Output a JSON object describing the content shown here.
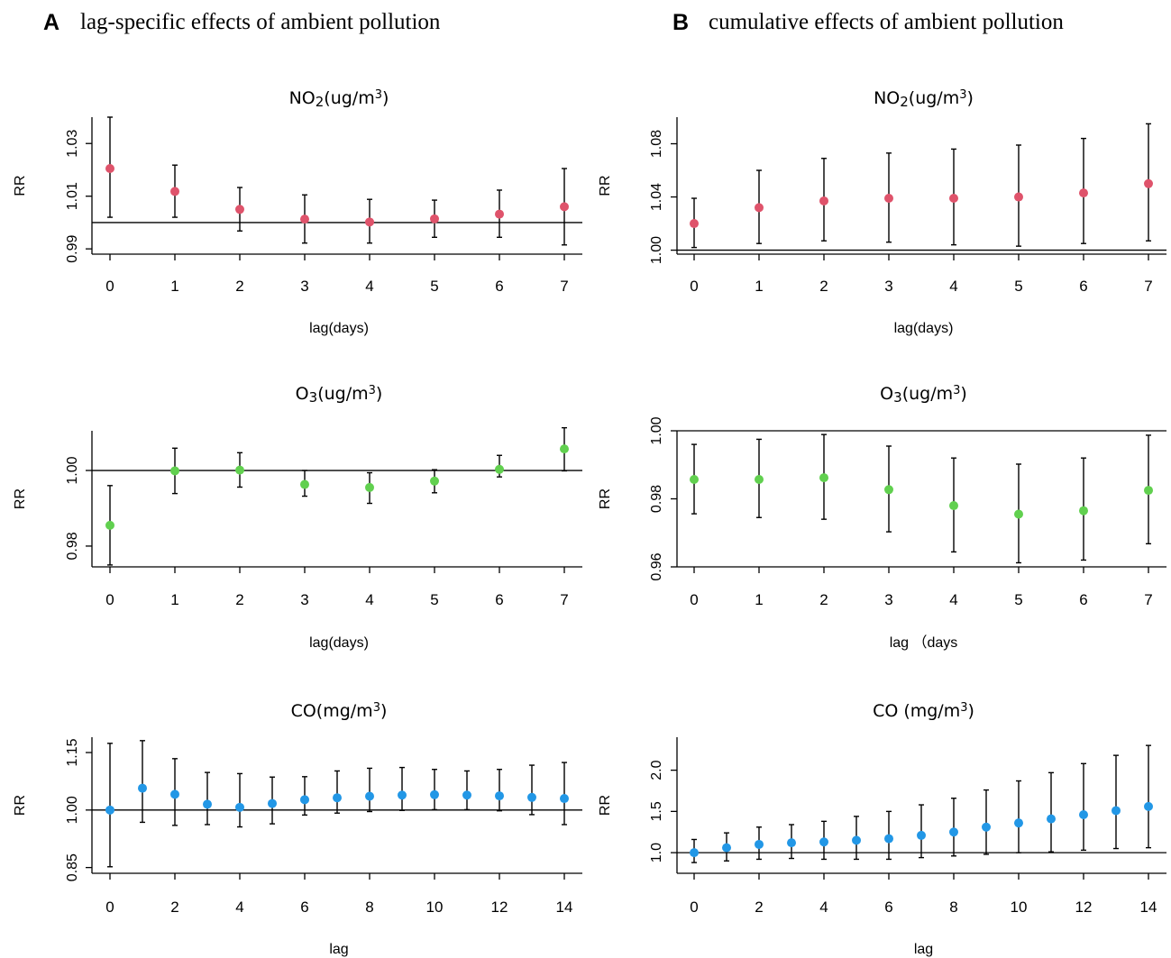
{
  "panels": [
    {
      "letter": "A",
      "title": "lag-specific effects of ambient pollution"
    },
    {
      "letter": "B",
      "title": "cumulative effects of ambient pollution"
    }
  ],
  "colors": {
    "no2": "#DF536B",
    "o3": "#61D04F",
    "co": "#2297E6",
    "axis": "#000000"
  },
  "chart_data": [
    {
      "id": "A-no2",
      "type": "scatter",
      "panel": "A",
      "title": {
        "base": "NO",
        "sub": "2",
        "mid": "(ug/m",
        "sup": "3",
        "end": ")"
      },
      "xlabel": "lag(days)",
      "ylabel": "RR",
      "color_key": "no2",
      "xlim": [
        0,
        7
      ],
      "ylim": [
        0.988,
        1.04
      ],
      "xticks": [
        0,
        1,
        2,
        3,
        4,
        5,
        6,
        7
      ],
      "yticks": [
        0.99,
        1.01,
        1.03
      ],
      "ytick_labels": [
        "0.99",
        "1.01",
        "1.03"
      ],
      "refline": 1.0,
      "x": [
        0,
        1,
        2,
        3,
        4,
        5,
        6,
        7
      ],
      "y": [
        1.0205,
        1.0118,
        1.005,
        1.0013,
        1.0002,
        1.0014,
        1.0032,
        1.006
      ],
      "lower": [
        1.002,
        1.002,
        0.9968,
        0.9922,
        0.9922,
        0.9944,
        0.9944,
        0.9915
      ],
      "upper": [
        1.04,
        1.0218,
        1.0133,
        1.0105,
        1.0088,
        1.0085,
        1.0123,
        1.0205
      ]
    },
    {
      "id": "B-no2",
      "type": "scatter",
      "panel": "B",
      "title": {
        "base": "NO",
        "sub": "2",
        "mid": "(ug/m",
        "sup": "3",
        "end": ")"
      },
      "xlabel": "lag(days)",
      "ylabel": "RR",
      "color_key": "no2",
      "xlim": [
        0,
        7
      ],
      "ylim": [
        0.997,
        1.1
      ],
      "xticks": [
        0,
        1,
        2,
        3,
        4,
        5,
        6,
        7
      ],
      "yticks": [
        1.0,
        1.04,
        1.08
      ],
      "ytick_labels": [
        "1.00",
        "1.04",
        "1.08"
      ],
      "refline": 1.0,
      "x": [
        0,
        1,
        2,
        3,
        4,
        5,
        6,
        7
      ],
      "y": [
        1.02,
        1.032,
        1.037,
        1.039,
        1.039,
        1.04,
        1.043,
        1.05
      ],
      "lower": [
        1.002,
        1.005,
        1.007,
        1.006,
        1.004,
        1.003,
        1.005,
        1.007
      ],
      "upper": [
        1.039,
        1.06,
        1.069,
        1.073,
        1.076,
        1.079,
        1.084,
        1.095
      ]
    },
    {
      "id": "A-o3",
      "type": "scatter",
      "panel": "A",
      "title": {
        "base": "O",
        "sub": "3",
        "mid": "(ug/m",
        "sup": "3",
        "end": ")"
      },
      "xlabel": "lag(days)",
      "ylabel": "RR",
      "color_key": "o3",
      "xlim": [
        0,
        7
      ],
      "ylim": [
        0.9745,
        1.0105
      ],
      "xticks": [
        0,
        1,
        2,
        3,
        4,
        5,
        6,
        7
      ],
      "yticks": [
        0.98,
        1.0
      ],
      "ytick_labels": [
        "0.98",
        "1.00"
      ],
      "refline": 1.0,
      "x": [
        0,
        1,
        2,
        3,
        4,
        5,
        6,
        7
      ],
      "y": [
        0.9855,
        0.9999,
        1.0001,
        0.9963,
        0.9955,
        0.9972,
        1.0003,
        1.0057
      ],
      "lower": [
        0.975,
        0.9939,
        0.9956,
        0.9932,
        0.9913,
        0.9941,
        0.9983,
        0.9999
      ],
      "upper": [
        0.996,
        1.0059,
        1.0047,
        1.0,
        0.9994,
        1.0002,
        1.004,
        1.0113
      ]
    },
    {
      "id": "B-o3",
      "type": "scatter",
      "panel": "B",
      "title": {
        "base": "O",
        "sub": "3",
        "mid": "(ug/m",
        "sup": "3",
        "end": ")"
      },
      "xlabel": "lag （days",
      "ylabel": "RR",
      "color_key": "o3",
      "xlim": [
        0,
        7
      ],
      "ylim": [
        0.96,
        1.0
      ],
      "xticks": [
        0,
        1,
        2,
        3,
        4,
        5,
        6,
        7
      ],
      "yticks": [
        0.96,
        0.98,
        1.0
      ],
      "ytick_labels": [
        "0.96",
        "0.98",
        "1.00"
      ],
      "refline": 1.0,
      "x": [
        0,
        1,
        2,
        3,
        4,
        5,
        6,
        7
      ],
      "y": [
        0.9857,
        0.9857,
        0.9862,
        0.9827,
        0.978,
        0.9755,
        0.9765,
        0.9825
      ],
      "lower": [
        0.9756,
        0.9745,
        0.974,
        0.9703,
        0.9644,
        0.9612,
        0.962,
        0.9668
      ],
      "upper": [
        0.996,
        0.9975,
        0.9989,
        0.9955,
        0.992,
        0.9902,
        0.992,
        0.9987
      ]
    },
    {
      "id": "A-co",
      "type": "scatter",
      "panel": "A",
      "title": {
        "base": "CO(mg/m",
        "sub": "",
        "mid": "",
        "sup": "3",
        "end": ")"
      },
      "xlabel": "lag",
      "ylabel": "RR",
      "color_key": "co",
      "xlim": [
        0,
        14
      ],
      "ylim": [
        0.835,
        1.19
      ],
      "xticks": [
        0,
        2,
        4,
        6,
        8,
        10,
        12,
        14
      ],
      "yticks": [
        0.85,
        1.0,
        1.15
      ],
      "ytick_labels": [
        "0.85",
        "1.00",
        "1.15"
      ],
      "refline": 1.0,
      "x": [
        0,
        1,
        2,
        3,
        4,
        5,
        6,
        7,
        8,
        9,
        10,
        11,
        12,
        13,
        14
      ],
      "y": [
        1.0,
        1.057,
        1.041,
        1.015,
        1.007,
        1.017,
        1.027,
        1.032,
        1.036,
        1.039,
        1.04,
        1.039,
        1.037,
        1.033,
        1.03
      ],
      "lower": [
        0.852,
        0.968,
        0.96,
        0.962,
        0.956,
        0.964,
        0.987,
        0.992,
        0.996,
        0.999,
        1.001,
        1.001,
        0.998,
        0.988,
        0.962
      ],
      "upper": [
        1.174,
        1.181,
        1.134,
        1.098,
        1.095,
        1.086,
        1.087,
        1.102,
        1.109,
        1.111,
        1.106,
        1.102,
        1.106,
        1.117,
        1.124
      ]
    },
    {
      "id": "B-co",
      "type": "scatter",
      "panel": "B",
      "title": {
        "base": "CO (mg/m",
        "sub": "",
        "mid": "",
        "sup": "3",
        "end": ")"
      },
      "xlabel": "lag",
      "ylabel": "RR",
      "color_key": "co",
      "xlim": [
        0,
        14
      ],
      "ylim": [
        0.75,
        2.4
      ],
      "xticks": [
        0,
        2,
        4,
        6,
        8,
        10,
        12,
        14
      ],
      "yticks": [
        1.0,
        1.5,
        2.0
      ],
      "ytick_labels": [
        "1.0",
        "1.5",
        "2.0"
      ],
      "refline": 1.0,
      "x": [
        0,
        1,
        2,
        3,
        4,
        5,
        6,
        7,
        8,
        9,
        10,
        11,
        12,
        13,
        14
      ],
      "y": [
        1.0,
        1.06,
        1.1,
        1.12,
        1.13,
        1.15,
        1.17,
        1.21,
        1.25,
        1.31,
        1.36,
        1.41,
        1.46,
        1.51,
        1.56
      ],
      "lower": [
        0.88,
        0.9,
        0.92,
        0.93,
        0.92,
        0.92,
        0.92,
        0.94,
        0.96,
        0.98,
        1.0,
        1.01,
        1.03,
        1.05,
        1.06
      ],
      "upper": [
        1.16,
        1.24,
        1.31,
        1.34,
        1.38,
        1.44,
        1.5,
        1.58,
        1.66,
        1.76,
        1.87,
        1.97,
        2.08,
        2.18,
        2.3
      ]
    }
  ]
}
